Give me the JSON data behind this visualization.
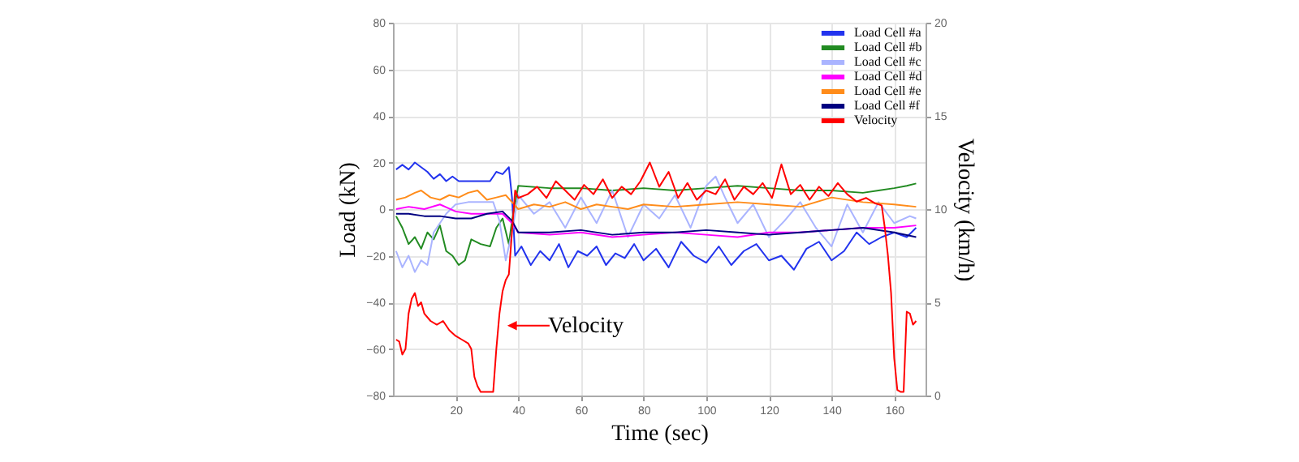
{
  "chart_data": {
    "type": "line",
    "xlabel": "Time (sec)",
    "ylabel": "Load (kN)",
    "y2label": "Velocity (km/h)",
    "xlim": [
      0,
      170
    ],
    "xticks": [
      20,
      40,
      60,
      80,
      100,
      120,
      140,
      160
    ],
    "ylim": [
      -80,
      80
    ],
    "yticks": [
      -80,
      -60,
      -40,
      -20,
      0,
      20,
      40,
      60,
      80
    ],
    "y2lim": [
      0,
      20
    ],
    "y2ticks": [
      0,
      5,
      10,
      15,
      20
    ],
    "grid": true,
    "legend": "top right",
    "annotations": [
      {
        "text": "Velocity",
        "x": 36,
        "y": -50
      }
    ],
    "series": [
      {
        "name": "Load Cell #a",
        "color": "#2233ee",
        "x": [
          1,
          3,
          5,
          7,
          9,
          11,
          13,
          15,
          17,
          19,
          21,
          23,
          27,
          31,
          33,
          35,
          37,
          38,
          39,
          41,
          44,
          47,
          50,
          53,
          56,
          59,
          62,
          65,
          68,
          71,
          74,
          77,
          80,
          84,
          88,
          92,
          96,
          100,
          104,
          108,
          112,
          116,
          120,
          124,
          128,
          132,
          136,
          140,
          144,
          148,
          152,
          156,
          160,
          164,
          167
        ],
        "values": [
          17,
          19,
          17,
          20,
          18,
          16,
          13,
          15,
          12,
          14,
          12,
          12,
          12,
          12,
          16,
          15,
          18,
          5,
          -20,
          -16,
          -24,
          -18,
          -22,
          -15,
          -25,
          -18,
          -20,
          -16,
          -24,
          -19,
          -21,
          -15,
          -22,
          -17,
          -25,
          -14,
          -20,
          -23,
          -16,
          -24,
          -18,
          -15,
          -22,
          -20,
          -26,
          -17,
          -14,
          -22,
          -18,
          -10,
          -15,
          -12,
          -10,
          -12,
          -8
        ]
      },
      {
        "name": "Load Cell #b",
        "color": "#228b22",
        "x": [
          1,
          3,
          5,
          7,
          9,
          11,
          13,
          15,
          17,
          19,
          21,
          23,
          25,
          28,
          31,
          33,
          35,
          37,
          38,
          40,
          50,
          60,
          70,
          80,
          90,
          100,
          110,
          120,
          130,
          140,
          150,
          155,
          160,
          164,
          167
        ],
        "values": [
          -3,
          -8,
          -15,
          -12,
          -17,
          -10,
          -13,
          -7,
          -18,
          -20,
          -24,
          -22,
          -13,
          -15,
          -16,
          -8,
          -4,
          -15,
          -5,
          10,
          9,
          9,
          8,
          9,
          8,
          9,
          10,
          9,
          8,
          8,
          7,
          8,
          9,
          10,
          11
        ]
      },
      {
        "name": "Load Cell #c",
        "color": "#aab4ff",
        "x": [
          1,
          3,
          5,
          7,
          9,
          11,
          13,
          15,
          17,
          20,
          24,
          28,
          32,
          34,
          36,
          38,
          40,
          45,
          50,
          55,
          60,
          65,
          70,
          75,
          80,
          85,
          90,
          95,
          100,
          103,
          106,
          110,
          115,
          120,
          125,
          130,
          135,
          140,
          145,
          150,
          155,
          160,
          165,
          167
        ],
        "values": [
          -18,
          -25,
          -20,
          -27,
          -22,
          -24,
          -10,
          -6,
          -2,
          2,
          3,
          3,
          3,
          -5,
          -22,
          -10,
          6,
          -2,
          3,
          -8,
          5,
          -6,
          8,
          -12,
          2,
          -4,
          6,
          -8,
          10,
          14,
          5,
          -6,
          2,
          -12,
          -5,
          3,
          -8,
          -16,
          2,
          -10,
          3,
          -6,
          -3,
          -4
        ]
      },
      {
        "name": "Load Cell #d",
        "color": "#ff00ff",
        "x": [
          1,
          5,
          10,
          15,
          20,
          25,
          30,
          35,
          38,
          40,
          50,
          60,
          70,
          80,
          90,
          100,
          110,
          120,
          130,
          140,
          150,
          160,
          167
        ],
        "values": [
          0,
          1,
          0,
          2,
          -1,
          -2,
          -2,
          -2,
          -6,
          -10,
          -11,
          -10,
          -12,
          -11,
          -10,
          -11,
          -12,
          -10,
          -10,
          -9,
          -8,
          -8,
          -7
        ]
      },
      {
        "name": "Load Cell #e",
        "color": "#ff8c1a",
        "x": [
          1,
          4,
          7,
          9,
          12,
          15,
          18,
          21,
          24,
          27,
          30,
          33,
          36,
          38,
          40,
          45,
          50,
          55,
          60,
          65,
          70,
          75,
          80,
          90,
          100,
          110,
          120,
          130,
          140,
          150,
          160,
          167
        ],
        "values": [
          4,
          5,
          7,
          8,
          5,
          4,
          6,
          5,
          7,
          8,
          4,
          5,
          6,
          3,
          0,
          2,
          1,
          3,
          0,
          2,
          1,
          0,
          2,
          1,
          2,
          3,
          2,
          1,
          5,
          3,
          2,
          1
        ]
      },
      {
        "name": "Load Cell #f",
        "color": "#000080",
        "x": [
          1,
          5,
          10,
          15,
          20,
          25,
          30,
          35,
          38,
          40,
          50,
          60,
          70,
          80,
          90,
          100,
          110,
          120,
          130,
          140,
          150,
          160,
          167
        ],
        "values": [
          -2,
          -2,
          -3,
          -3,
          -4,
          -4,
          -2,
          -1,
          -5,
          -10,
          -10,
          -9,
          -11,
          -10,
          -10,
          -9,
          -10,
          -11,
          -10,
          -9,
          -8,
          -10,
          -12
        ]
      },
      {
        "name": "Velocity",
        "color": "#ff0000",
        "axis": "y2",
        "x": [
          1,
          2,
          3,
          4,
          5,
          6,
          7,
          8,
          9,
          10,
          12,
          14,
          16,
          18,
          20,
          22,
          24,
          25,
          26,
          27,
          28,
          30,
          32,
          33,
          34,
          35,
          36,
          37,
          38,
          39,
          40,
          43,
          46,
          49,
          52,
          55,
          58,
          61,
          64,
          67,
          70,
          73,
          76,
          79,
          82,
          85,
          88,
          91,
          94,
          97,
          100,
          103,
          106,
          109,
          112,
          115,
          118,
          121,
          124,
          127,
          130,
          133,
          136,
          139,
          142,
          145,
          148,
          151,
          154,
          156,
          157,
          158,
          159,
          160,
          161,
          162,
          163,
          164,
          165,
          166,
          167
        ],
        "values": [
          3,
          2.9,
          2.2,
          2.5,
          4.4,
          5.2,
          5.5,
          4.8,
          5,
          4.4,
          4,
          3.8,
          4,
          3.5,
          3.2,
          3,
          2.8,
          2.5,
          1,
          0.5,
          0.2,
          0.2,
          0.2,
          2.5,
          4.4,
          5.6,
          6.2,
          6.5,
          8.8,
          11,
          10.6,
          10.8,
          11.2,
          10.6,
          11.5,
          11,
          10.5,
          11.3,
          10.8,
          11.6,
          10.6,
          11.2,
          10.8,
          11.5,
          12.5,
          11.2,
          12,
          10.6,
          11.4,
          10.5,
          11,
          10.8,
          11.6,
          10.5,
          11.2,
          10.8,
          11.4,
          10.6,
          12.4,
          10.8,
          11.3,
          10.5,
          11.2,
          10.7,
          11.4,
          10.8,
          10.4,
          10.6,
          10.3,
          10.2,
          9,
          7.5,
          5.5,
          2,
          0.3,
          0.2,
          0.2,
          4.5,
          4.4,
          3.8,
          4
        ]
      }
    ]
  }
}
